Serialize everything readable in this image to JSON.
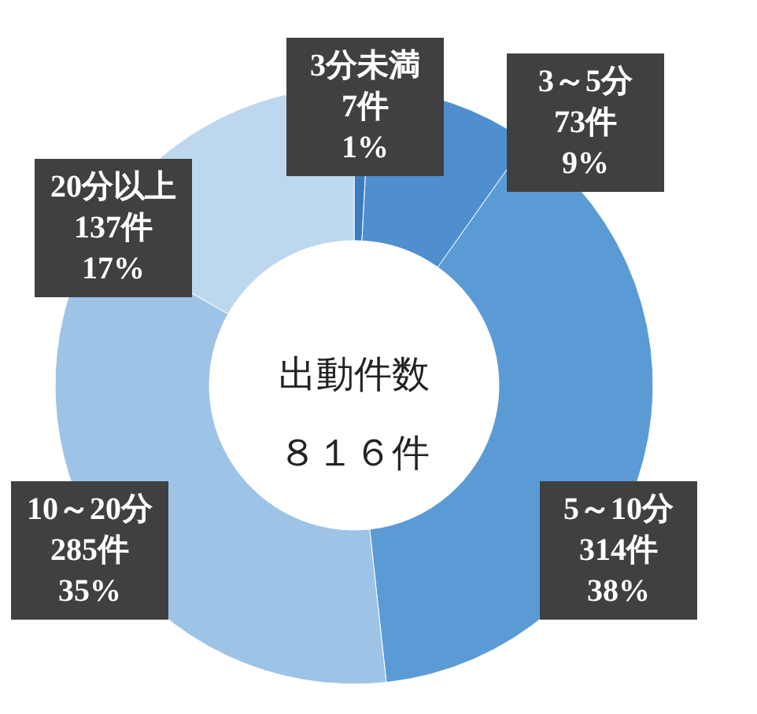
{
  "chart_data": {
    "type": "donut",
    "categories": [
      "3分未満",
      "3～5分",
      "5～10分",
      "10～20分",
      "20分以上"
    ],
    "values": [
      7,
      73,
      314,
      285,
      137
    ],
    "value_labels": [
      "7件\n1%",
      "73件\n9%",
      "314件\n38%",
      "285件\n35%",
      "137件\n17%"
    ],
    "colors": [
      "#3b7cbf",
      "#4f8fcf",
      "#5b9bd5",
      "#9dc3e6",
      "#bdd7ee"
    ],
    "annotations": [
      "出動件数",
      "８１６件"
    ]
  }
}
